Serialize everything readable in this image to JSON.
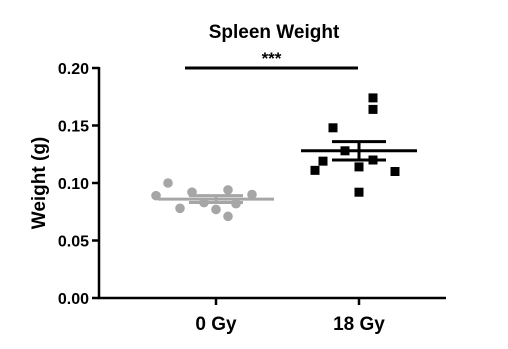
{
  "chart_data": {
    "type": "scatter",
    "title": "Spleen Weight",
    "xlabel": "",
    "ylabel": "Weight (g)",
    "ylim": [
      0,
      0.2
    ],
    "yticks": [
      "0.00",
      "0.05",
      "0.10",
      "0.15",
      "0.20"
    ],
    "yticks_values": [
      0,
      0.05,
      0.1,
      0.15,
      0.2
    ],
    "categories": [
      "0 Gy",
      "18 Gy"
    ],
    "groups": [
      {
        "category": "0 Gy",
        "marker": "circle",
        "color": "#a6a6a6",
        "values": [
          0.1,
          0.094,
          0.092,
          0.09,
          0.089,
          0.083,
          0.082,
          0.078,
          0.077,
          0.071
        ],
        "mean": 0.086,
        "sem": 0.003
      },
      {
        "category": "18 Gy",
        "marker": "square",
        "color": "#000000",
        "values": [
          0.174,
          0.164,
          0.148,
          0.128,
          0.12,
          0.119,
          0.114,
          0.111,
          0.11,
          0.092
        ],
        "mean": 0.128,
        "sem": 0.008
      }
    ],
    "significance": {
      "label": "***",
      "between": [
        "0 Gy",
        "18 Gy"
      ]
    },
    "grid": false,
    "legend": "none"
  }
}
